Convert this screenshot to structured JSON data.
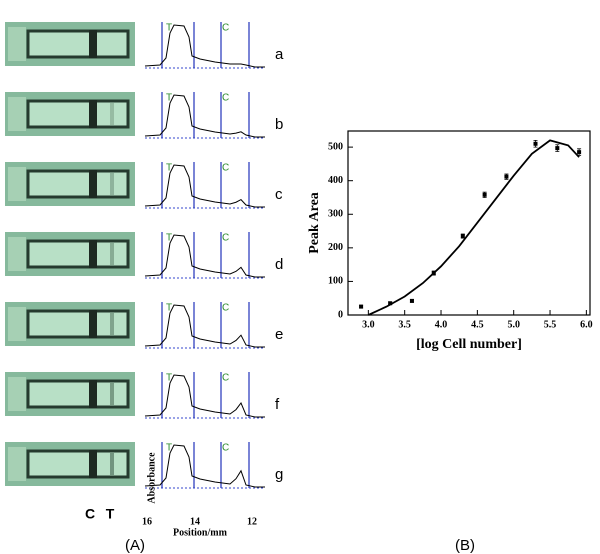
{
  "panel_a": {
    "rows": [
      {
        "label": "a",
        "peaks": [
          "T",
          "C"
        ]
      },
      {
        "label": "b",
        "peaks": [
          "T",
          "C"
        ]
      },
      {
        "label": "c",
        "peaks": [
          "T",
          "C"
        ]
      },
      {
        "label": "d",
        "peaks": [
          "T",
          "C"
        ]
      },
      {
        "label": "e",
        "peaks": [
          "T",
          "C"
        ]
      },
      {
        "label": "f",
        "peaks": [
          "T",
          "C"
        ]
      },
      {
        "label": "g",
        "peaks": [
          "T",
          "C"
        ]
      }
    ],
    "ylabel": "Absorbance",
    "xlabel": "Position/mm",
    "xticks": [
      "16",
      "14",
      "12"
    ],
    "strip_labels": [
      "C",
      "T"
    ],
    "panel_label": "(A)"
  },
  "chart_data": {
    "type": "scatter",
    "xlabel": "[log Cell number]",
    "ylabel": "Peak Area",
    "x": [
      2.9,
      3.3,
      3.6,
      3.9,
      4.3,
      4.6,
      4.9,
      5.3,
      5.6,
      5.9
    ],
    "values": [
      25,
      35,
      42,
      125,
      235,
      358,
      412,
      510,
      497,
      485
    ],
    "errors": [
      4,
      4,
      4,
      6,
      6,
      8,
      8,
      10,
      10,
      10
    ],
    "fit": {
      "x": [
        3.0,
        3.25,
        3.5,
        3.75,
        4.0,
        4.25,
        4.5,
        4.75,
        5.0,
        5.25,
        5.5,
        5.75,
        5.9
      ],
      "values": [
        0,
        25,
        55,
        95,
        145,
        205,
        275,
        345,
        415,
        480,
        520,
        505,
        470
      ]
    },
    "color": "#000000",
    "xlim": [
      2.72,
      6.05
    ],
    "ylim": [
      0,
      548
    ],
    "xticks": [
      {
        "value": 3,
        "label": "3.0"
      },
      {
        "value": 3.5,
        "label": "3.5"
      },
      {
        "value": 4,
        "label": "4.0"
      },
      {
        "value": 4.5,
        "label": "4.5"
      },
      {
        "value": 5,
        "label": "5.0"
      },
      {
        "value": 5.5,
        "label": "5.5"
      },
      {
        "value": 6,
        "label": "6.0"
      }
    ],
    "yticks": [
      0,
      100,
      200,
      300,
      400,
      500
    ],
    "panel_label": "(B)"
  }
}
